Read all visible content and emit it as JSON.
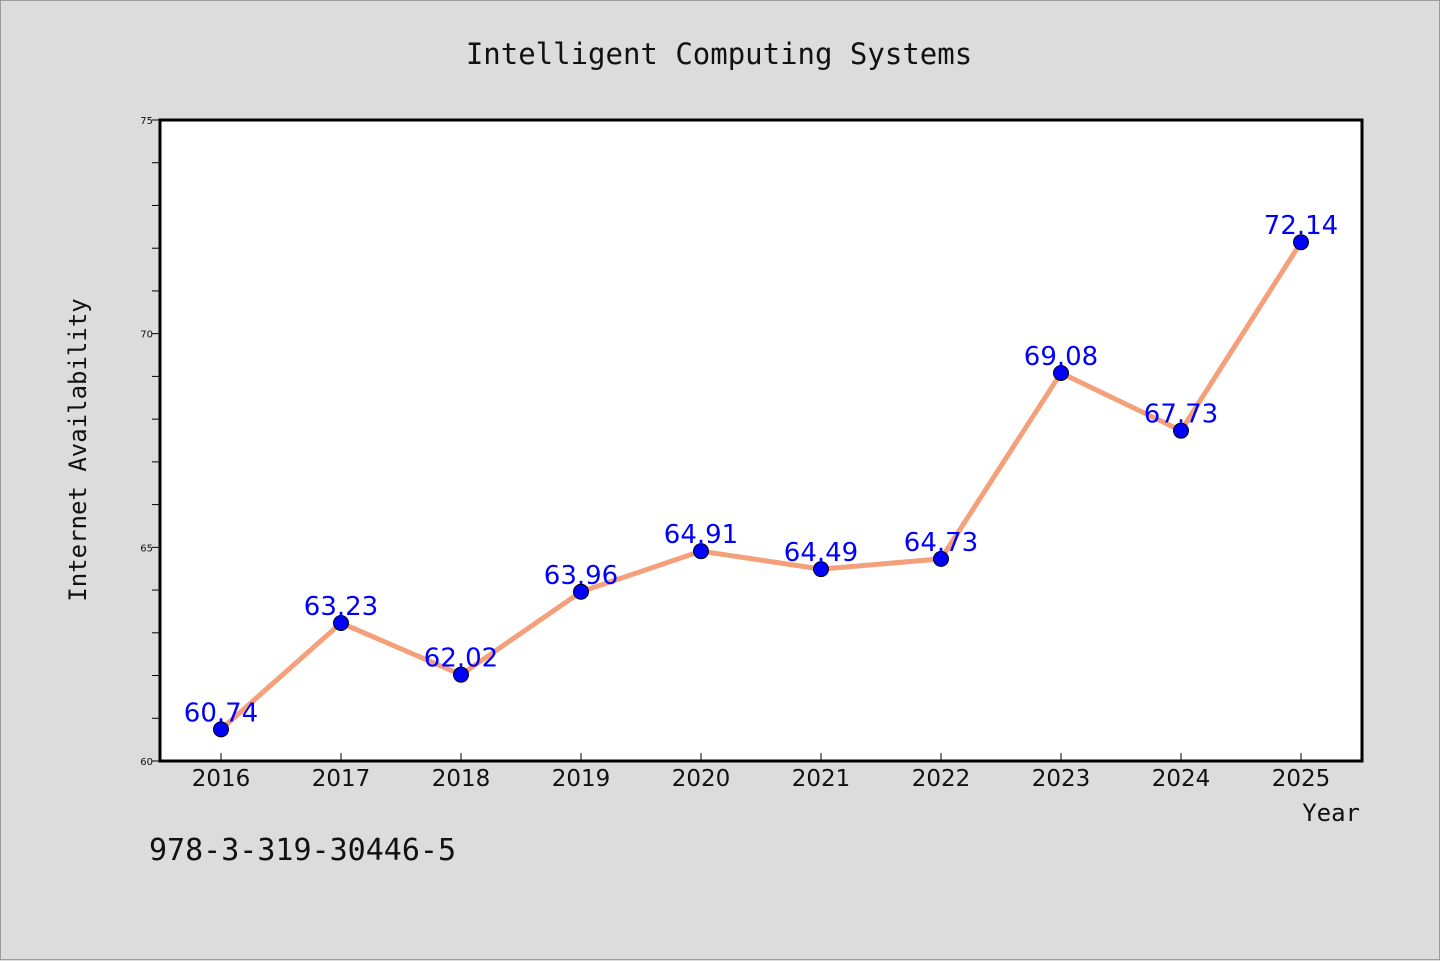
{
  "chart_data": {
    "type": "line",
    "title": "Intelligent Computing Systems",
    "xlabel": "Year",
    "ylabel": "Internet Availability",
    "categories": [
      "2016",
      "2017",
      "2018",
      "2019",
      "2020",
      "2021",
      "2022",
      "2023",
      "2024",
      "2025"
    ],
    "series": [
      {
        "values": [
          60.74,
          63.23,
          62.02,
          63.96,
          64.91,
          64.49,
          64.73,
          69.08,
          67.73,
          72.14
        ],
        "labels": [
          "60.74",
          "63.23",
          "62.02",
          "63.96",
          "64.91",
          "64.49",
          "64.73",
          "69.08",
          "67.73",
          "72.14"
        ]
      }
    ],
    "ylim": [
      60,
      75
    ],
    "yticks": [
      "60",
      "65",
      "70",
      "75"
    ],
    "y_major_values": [
      60,
      65,
      70,
      75
    ],
    "y_minor_step": 1,
    "grid": false,
    "colors": {
      "line": "#f4a07a",
      "marker": "#0000ff",
      "label": "#0000ff",
      "background": "#dcdcdc",
      "plot_background": "#ffffff"
    }
  },
  "footer": {
    "isbn": "978-3-319-30446-5"
  }
}
